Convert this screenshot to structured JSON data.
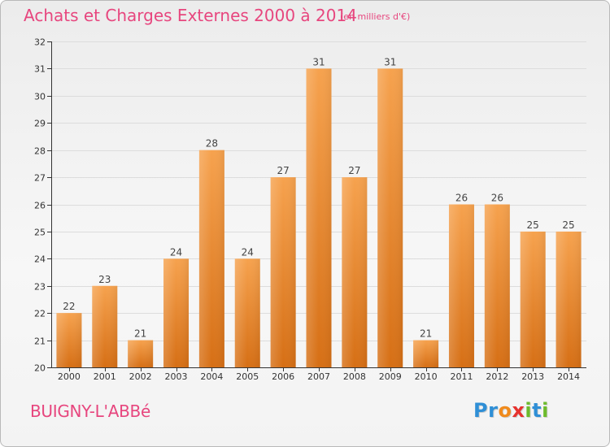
{
  "header": {
    "title": "Achats et Charges Externes 2000 à 2014",
    "subtitle": "(en milliers d'€)"
  },
  "footer": {
    "commune": "BUIGNY-L'ABBé",
    "logo_letters": [
      {
        "char": "P",
        "color": "#2f8fd6"
      },
      {
        "char": "r",
        "color": "#2f8fd6"
      },
      {
        "char": "o",
        "color": "#f08a1c"
      },
      {
        "char": "x",
        "color": "#e6322e"
      },
      {
        "char": "i",
        "color": "#6dbb2c"
      },
      {
        "char": "t",
        "color": "#2f8fd6"
      },
      {
        "char": "i",
        "color": "#6dbb2c"
      }
    ]
  },
  "colors": {
    "accent": "#e7467e",
    "bar_top": "#f6a24e",
    "bar_bottom": "#d66f15",
    "axis": "#333333",
    "grid": "#dcdcdc"
  },
  "chart_data": {
    "type": "bar",
    "categories": [
      "2000",
      "2001",
      "2002",
      "2003",
      "2004",
      "2005",
      "2006",
      "2007",
      "2008",
      "2009",
      "2010",
      "2011",
      "2012",
      "2013",
      "2014"
    ],
    "values": [
      22,
      23,
      21,
      24,
      28,
      24,
      27,
      31,
      27,
      31,
      21,
      26,
      26,
      25,
      25
    ],
    "data_labels": [
      "22",
      "23",
      "21",
      "24",
      "28",
      "24",
      "27",
      "31",
      "27",
      "31",
      "21",
      "26",
      "26",
      "25",
      "25"
    ],
    "title": "Achats et Charges Externes 2000 à 2014",
    "subtitle": "(en milliers d'€)",
    "ylim": [
      20,
      32
    ],
    "yticks": [
      20,
      21,
      22,
      23,
      24,
      25,
      26,
      27,
      28,
      29,
      30,
      31,
      32
    ],
    "grid": true,
    "legend": "none"
  }
}
